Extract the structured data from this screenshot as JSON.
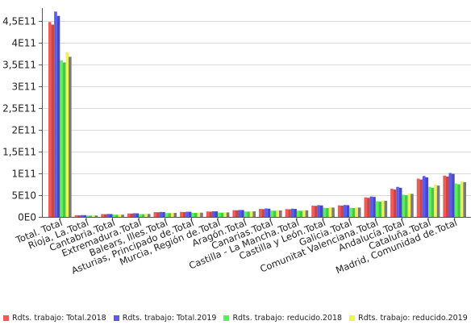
{
  "chart_data": {
    "type": "bar",
    "title": "",
    "xlabel": "",
    "ylabel": "",
    "ylim": [
      0,
      480000000000
    ],
    "grid": true,
    "legend_position": "bottom",
    "y_ticks": [
      {
        "value": 0,
        "label": "0E0"
      },
      {
        "value": 50000000000,
        "label": "5E10"
      },
      {
        "value": 100000000000,
        "label": "1E11"
      },
      {
        "value": 150000000000,
        "label": "1,5E11"
      },
      {
        "value": 200000000000,
        "label": "2E11"
      },
      {
        "value": 250000000000,
        "label": "2,5E11"
      },
      {
        "value": 300000000000,
        "label": "3E11"
      },
      {
        "value": 350000000000,
        "label": "3,5E11"
      },
      {
        "value": 400000000000,
        "label": "4E11"
      },
      {
        "value": 450000000000,
        "label": "4,5E11"
      }
    ],
    "categories": [
      "Total. Total",
      "Rioja, La.Total",
      "Cantabria.Total",
      "Extremadura.Total",
      "Balears, Illes.Total",
      "Asturias, Principado de.Total",
      "Murcia, Región de.Total",
      "Aragón.Total",
      "Canarias.Total",
      "Castilla - La Mancha.Total",
      "Castilla y León.Total",
      "Galicia.Total",
      "Comunitat Valenciana.Total",
      "Andalucía.Total",
      "Cataluña.Total",
      "Madrid, Comunidad de.Total"
    ],
    "series": [
      {
        "name": "Rdts. trabajo: Total.2018",
        "color": "#f05a5a",
        "values": [
          448000000000,
          4000000000,
          6500000000,
          8000000000,
          11000000000,
          11500000000,
          12500000000,
          15500000000,
          18500000000,
          18000000000,
          26000000000,
          26500000000,
          45000000000,
          65000000000,
          88000000000,
          95000000000
        ]
      },
      {
        "name": "Rdts. trabajo: Total.2019",
        "color": "#5a5af0",
        "values": [
          472000000000,
          4200000000,
          6800000000,
          8500000000,
          11500000000,
          12000000000,
          13000000000,
          16000000000,
          19500000000,
          19000000000,
          27000000000,
          27500000000,
          47000000000,
          69000000000,
          94000000000,
          101000000000
        ]
      },
      {
        "name": "Rdts. trabajo: reducido.2018",
        "color": "#5af05a",
        "values": [
          360000000000,
          3200000000,
          5200000000,
          6500000000,
          9000000000,
          9500000000,
          10000000000,
          12500000000,
          14500000000,
          14500000000,
          21000000000,
          21000000000,
          36000000000,
          51000000000,
          69000000000,
          77000000000
        ]
      },
      {
        "name": "Rdts. trabajo: reducido.2019",
        "color": "#f0f05a",
        "values": [
          378000000000,
          3400000000,
          5500000000,
          7000000000,
          9500000000,
          10000000000,
          10500000000,
          13000000000,
          15500000000,
          15500000000,
          22000000000,
          22000000000,
          38000000000,
          54000000000,
          74000000000,
          82000000000
        ]
      }
    ],
    "extra_bar_colors": [
      "#c84646",
      "#4646c8",
      "#46c846",
      "#7a7a7a"
    ],
    "extra_bar_values": [
      [
        442000000000,
        3900000000,
        6300000000,
        7800000000,
        10800000000,
        11200000000,
        12200000000,
        15200000000,
        18000000000,
        17500000000,
        25500000000,
        26000000000,
        44000000000,
        63000000000,
        86000000000,
        93000000000
      ],
      [
        462000000000,
        4100000000,
        6600000000,
        8300000000,
        11200000000,
        11800000000,
        12800000000,
        15800000000,
        19000000000,
        18500000000,
        26500000000,
        27000000000,
        46000000000,
        67000000000,
        91000000000,
        99000000000
      ],
      [
        355000000000,
        3100000000,
        5100000000,
        6400000000,
        8800000000,
        9300000000,
        9800000000,
        12200000000,
        14200000000,
        14200000000,
        20500000000,
        20500000000,
        35000000000,
        50000000000,
        67000000000,
        75000000000
      ],
      [
        368000000000,
        3300000000,
        5300000000,
        6800000000,
        9300000000,
        9800000000,
        10300000000,
        12800000000,
        15000000000,
        15200000000,
        21500000000,
        21500000000,
        37000000000,
        53000000000,
        72000000000,
        80000000000
      ]
    ]
  }
}
